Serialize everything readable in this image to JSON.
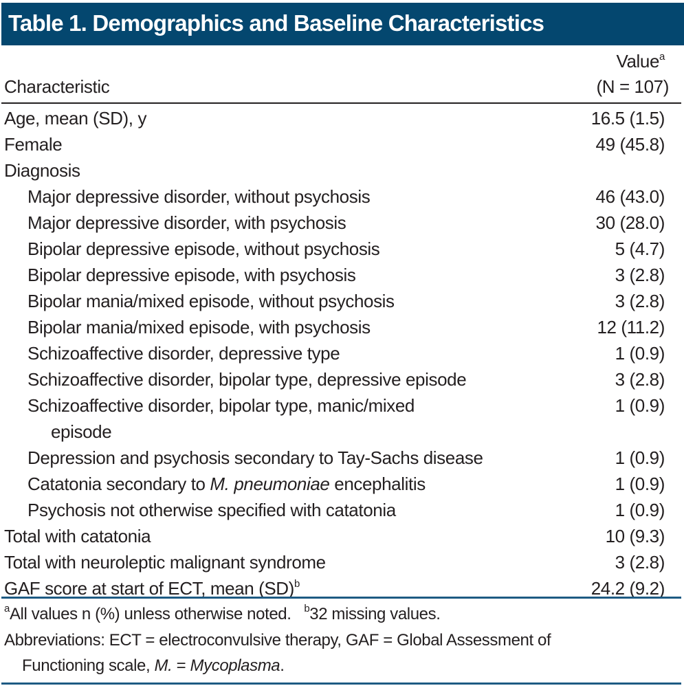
{
  "title": "Table 1. Demographics and Baseline Characteristics",
  "header": {
    "characteristic": "Characteristic",
    "value": "Value",
    "value_sup": "a",
    "n": "(N = 107)"
  },
  "rows": [
    {
      "label": "Age, mean (SD), y",
      "value": "16.5 (1.5)",
      "indent": 0
    },
    {
      "label": "Female",
      "value": "49 (45.8)",
      "indent": 0
    },
    {
      "label": "Diagnosis",
      "value": "",
      "indent": 0
    },
    {
      "label": "Major depressive disorder, without psychosis",
      "value": "46 (43.0)",
      "indent": 1
    },
    {
      "label": "Major depressive disorder, with psychosis",
      "value": "30 (28.0)",
      "indent": 1
    },
    {
      "label": "Bipolar depressive episode, without psychosis",
      "value": "5 (4.7)",
      "indent": 1
    },
    {
      "label": "Bipolar depressive episode, with psychosis",
      "value": "3 (2.8)",
      "indent": 1
    },
    {
      "label": "Bipolar mania/mixed episode, without psychosis",
      "value": "3 (2.8)",
      "indent": 1
    },
    {
      "label": "Bipolar mania/mixed episode, with psychosis",
      "value": "12 (11.2)",
      "indent": 1
    },
    {
      "label": "Schizoaffective disorder, depressive type",
      "value": "1 (0.9)",
      "indent": 1
    },
    {
      "label": "Schizoaffective disorder, bipolar type, depressive episode",
      "value": "3 (2.8)",
      "indent": 1
    },
    {
      "label": "Schizoaffective disorder, bipolar type, manic/mixed",
      "label_cont": "episode",
      "value": "1 (0.9)",
      "indent": 1
    },
    {
      "label": "Depression and psychosis secondary to Tay-Sachs disease",
      "value": "1 (0.9)",
      "indent": 1
    },
    {
      "label_parts": [
        {
          "text": "Catatonia secondary to "
        },
        {
          "text": "M. pneumoniae",
          "italic": true
        },
        {
          "text": " encephalitis"
        }
      ],
      "value": "1 (0.9)",
      "indent": 1
    },
    {
      "label": "Psychosis not otherwise specified with catatonia",
      "value": "1 (0.9)",
      "indent": 1
    },
    {
      "label": "Total with catatonia",
      "value": "10 (9.3)",
      "indent": 0
    },
    {
      "label": "Total with neuroleptic malignant syndrome",
      "value": "3 (2.8)",
      "indent": 0
    },
    {
      "label": "GAF score at start of ECT, mean (SD)",
      "label_sup": "b",
      "value": "24.2 (9.2)",
      "indent": 0
    }
  ],
  "footnotes": {
    "a_sup": "a",
    "a_text": "All values n (%) unless otherwise noted.",
    "b_sup": "b",
    "b_text": "32 missing values.",
    "abbrev_line1": "Abbreviations: ECT = electroconvulsive therapy, GAF = Global Assessment of",
    "abbrev_line2_a": "Functioning scale, ",
    "abbrev_line2_b": "M.",
    "abbrev_line2_c": " = ",
    "abbrev_line2_d": "Mycoplasma",
    "abbrev_line2_e": "."
  }
}
